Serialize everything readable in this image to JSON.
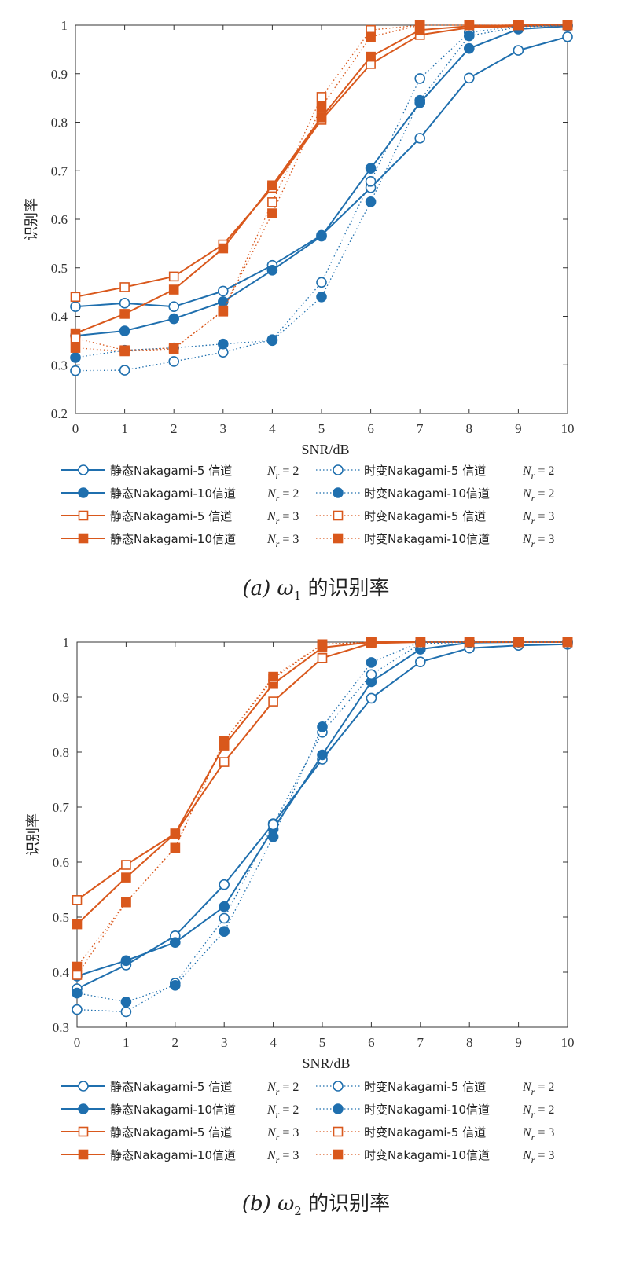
{
  "chart_data": [
    {
      "type": "line",
      "caption_prefix": "(a)",
      "caption_symbol": "ω",
      "caption_sub": "1",
      "caption_suffix": "的识别率",
      "xlabel": "SNR/dB",
      "ylabel": "识别率",
      "xlim": [
        0,
        10
      ],
      "ylim": [
        0.2,
        1
      ],
      "xticks": [
        "0",
        "1",
        "2",
        "3",
        "4",
        "5",
        "6",
        "7",
        "8",
        "9",
        "10"
      ],
      "yticks": [
        "0.2",
        "0.3",
        "0.4",
        "0.5",
        "0.6",
        "0.7",
        "0.8",
        "0.9",
        "1"
      ],
      "grid": false,
      "x": [
        0,
        1,
        2,
        3,
        4,
        5,
        6,
        7,
        8,
        9,
        10
      ],
      "series": [
        {
          "name": "静态Nakagami-5 信道",
          "nr": "2",
          "color": "#1f6fae",
          "dash": "solid",
          "marker": "circle-open",
          "values": [
            0.42,
            0.427,
            0.42,
            0.452,
            0.505,
            0.567,
            0.665,
            0.767,
            0.891,
            0.948,
            0.976
          ]
        },
        {
          "name": "静态Nakagami-10信道",
          "nr": "2",
          "color": "#1f6fae",
          "dash": "solid",
          "marker": "circle-filled",
          "values": [
            0.36,
            0.37,
            0.395,
            0.43,
            0.495,
            0.565,
            0.705,
            0.84,
            0.952,
            0.992,
            0.998
          ]
        },
        {
          "name": "静态Nakagami-5 信道",
          "nr": "3",
          "color": "#d9581c",
          "dash": "solid",
          "marker": "square-open",
          "values": [
            0.44,
            0.46,
            0.482,
            0.548,
            0.665,
            0.805,
            0.92,
            0.98,
            0.995,
            0.998,
            1.0
          ]
        },
        {
          "name": "静态Nakagami-10信道",
          "nr": "3",
          "color": "#d9581c",
          "dash": "solid",
          "marker": "square-filled",
          "values": [
            0.365,
            0.405,
            0.455,
            0.54,
            0.67,
            0.81,
            0.935,
            0.99,
            0.998,
            1.0,
            1.0
          ]
        },
        {
          "name": "时变Nakagami-5 信道",
          "nr": "2",
          "color": "#1f6fae",
          "dash": "dotted",
          "marker": "circle-open",
          "values": [
            0.288,
            0.289,
            0.307,
            0.326,
            0.352,
            0.47,
            0.678,
            0.89,
            0.985,
            0.998,
            1.0
          ]
        },
        {
          "name": "时变Nakagami-10信道",
          "nr": "2",
          "color": "#1f6fae",
          "dash": "dotted",
          "marker": "circle-filled",
          "values": [
            0.315,
            0.33,
            0.335,
            0.343,
            0.35,
            0.44,
            0.636,
            0.845,
            0.978,
            0.996,
            1.0
          ]
        },
        {
          "name": "时变Nakagami-5 信道",
          "nr": "3",
          "color": "#d9581c",
          "dash": "dotted",
          "marker": "square-open",
          "values": [
            0.355,
            0.33,
            0.335,
            0.41,
            0.635,
            0.852,
            0.99,
            1.0,
            1.0,
            1.0,
            1.0
          ]
        },
        {
          "name": "时变Nakagami-10信道",
          "nr": "3",
          "color": "#d9581c",
          "dash": "dotted",
          "marker": "square-filled",
          "values": [
            0.335,
            0.328,
            0.333,
            0.412,
            0.612,
            0.832,
            0.976,
            1.0,
            1.0,
            1.0,
            1.0
          ]
        }
      ]
    },
    {
      "type": "line",
      "caption_prefix": "(b)",
      "caption_symbol": "ω",
      "caption_sub": "2",
      "caption_suffix": "的识别率",
      "xlabel": "SNR/dB",
      "ylabel": "识别率",
      "xlim": [
        0,
        10
      ],
      "ylim": [
        0.3,
        1
      ],
      "xticks": [
        "0",
        "1",
        "2",
        "3",
        "4",
        "5",
        "6",
        "7",
        "8",
        "9",
        "10"
      ],
      "yticks": [
        "0.3",
        "0.4",
        "0.5",
        "0.6",
        "0.7",
        "0.8",
        "0.9",
        "1"
      ],
      "grid": false,
      "x": [
        0,
        1,
        2,
        3,
        4,
        5,
        6,
        7,
        8,
        9,
        10
      ],
      "series": [
        {
          "name": "静态Nakagami-5 信道",
          "nr": "2",
          "color": "#1f6fae",
          "dash": "solid",
          "marker": "circle-open",
          "values": [
            0.37,
            0.413,
            0.466,
            0.559,
            0.67,
            0.787,
            0.898,
            0.964,
            0.989,
            0.994,
            0.996
          ]
        },
        {
          "name": "静态Nakagami-10信道",
          "nr": "2",
          "color": "#1f6fae",
          "dash": "solid",
          "marker": "circle-filled",
          "values": [
            0.393,
            0.421,
            0.454,
            0.519,
            0.66,
            0.795,
            0.928,
            0.987,
            0.999,
            1.0,
            1.0
          ]
        },
        {
          "name": "静态Nakagami-5 信道",
          "nr": "3",
          "color": "#d9581c",
          "dash": "solid",
          "marker": "square-open",
          "values": [
            0.531,
            0.595,
            0.652,
            0.782,
            0.892,
            0.971,
            0.998,
            1.0,
            1.0,
            1.0,
            1.0
          ]
        },
        {
          "name": "静态Nakagami-10信道",
          "nr": "3",
          "color": "#d9581c",
          "dash": "solid",
          "marker": "square-filled",
          "values": [
            0.487,
            0.572,
            0.652,
            0.812,
            0.924,
            0.99,
            1.0,
            1.0,
            1.0,
            1.0,
            1.0
          ]
        },
        {
          "name": "时变Nakagami-5 信道",
          "nr": "2",
          "color": "#1f6fae",
          "dash": "dotted",
          "marker": "circle-open",
          "values": [
            0.332,
            0.328,
            0.38,
            0.498,
            0.668,
            0.836,
            0.941,
            0.997,
            1.0,
            1.0,
            1.0
          ]
        },
        {
          "name": "时变Nakagami-10信道",
          "nr": "2",
          "color": "#1f6fae",
          "dash": "dotted",
          "marker": "circle-filled",
          "values": [
            0.362,
            0.346,
            0.376,
            0.474,
            0.646,
            0.846,
            0.963,
            1.0,
            1.0,
            1.0,
            1.0
          ]
        },
        {
          "name": "时变Nakagami-5 信道",
          "nr": "3",
          "color": "#d9581c",
          "dash": "dotted",
          "marker": "square-open",
          "values": [
            0.395,
            0.527,
            0.626,
            0.82,
            0.934,
            0.996,
            1.0,
            1.0,
            1.0,
            1.0,
            1.0
          ]
        },
        {
          "name": "时变Nakagami-10信道",
          "nr": "3",
          "color": "#d9581c",
          "dash": "dotted",
          "marker": "square-filled",
          "values": [
            0.41,
            0.527,
            0.626,
            0.82,
            0.937,
            0.996,
            1.0,
            1.0,
            1.0,
            1.0,
            1.0
          ]
        }
      ]
    }
  ]
}
